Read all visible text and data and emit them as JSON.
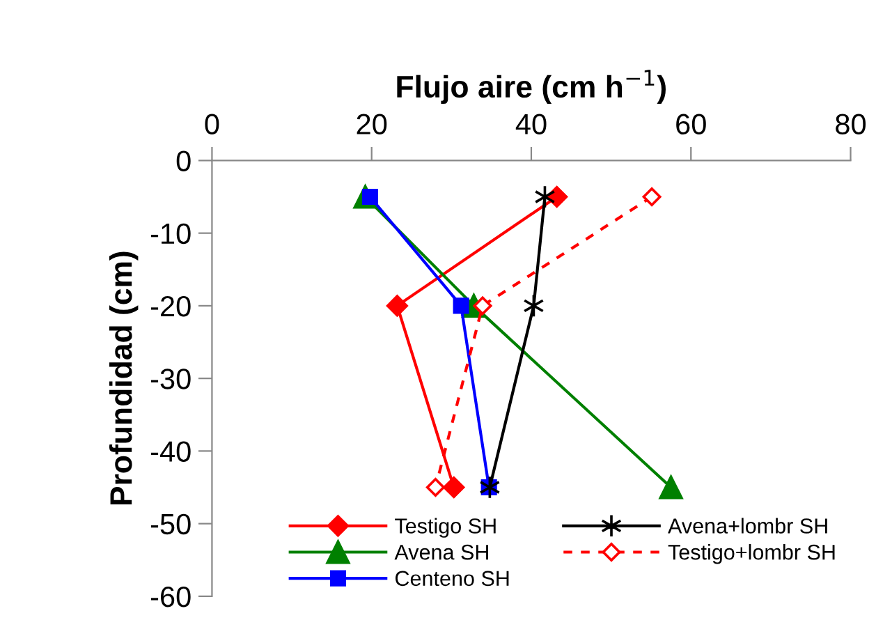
{
  "chart_data": {
    "type": "line",
    "xlabel": "Flujo aire (cm h$^{−1}$)",
    "ylabel": "Profundidad (cm)",
    "xlim": [
      0,
      80
    ],
    "xticks": [
      0,
      20,
      40,
      60,
      80
    ],
    "ylim": [
      -60,
      0
    ],
    "yticks": [
      -60,
      -50,
      -40,
      -30,
      -20,
      -10,
      0
    ],
    "grid": false,
    "legend": "bottom",
    "series": [
      {
        "name": "Testigo SH",
        "color": "#ff0000",
        "marker": "diamond",
        "line_style": "solid",
        "x": [
          43.2,
          23.2,
          30.3
        ],
        "values": [
          -5,
          -20,
          -45
        ]
      },
      {
        "name": "Avena SH",
        "color": "#008000",
        "marker": "triangle",
        "line_style": "solid",
        "x": [
          19.2,
          32.8,
          57.5
        ],
        "values": [
          -5,
          -20,
          -45
        ]
      },
      {
        "name": "Centeno SH",
        "color": "#0000ff",
        "marker": "square",
        "line_style": "solid",
        "x": [
          19.8,
          31.2,
          34.7
        ],
        "values": [
          -5,
          -20,
          -45
        ]
      },
      {
        "name": "Avena+lombr SH",
        "color": "#000000",
        "marker": "cross",
        "line_style": "solid",
        "x": [
          41.7,
          40.3,
          34.8
        ],
        "values": [
          -5,
          -20,
          -45
        ]
      },
      {
        "name": "Testigo+lombr SH",
        "color": "#ff0000",
        "marker": "diamond",
        "line_style": "dashed",
        "x": [
          55.1,
          33.9,
          28.0
        ],
        "values": [
          -5,
          -20,
          -45
        ]
      }
    ]
  }
}
